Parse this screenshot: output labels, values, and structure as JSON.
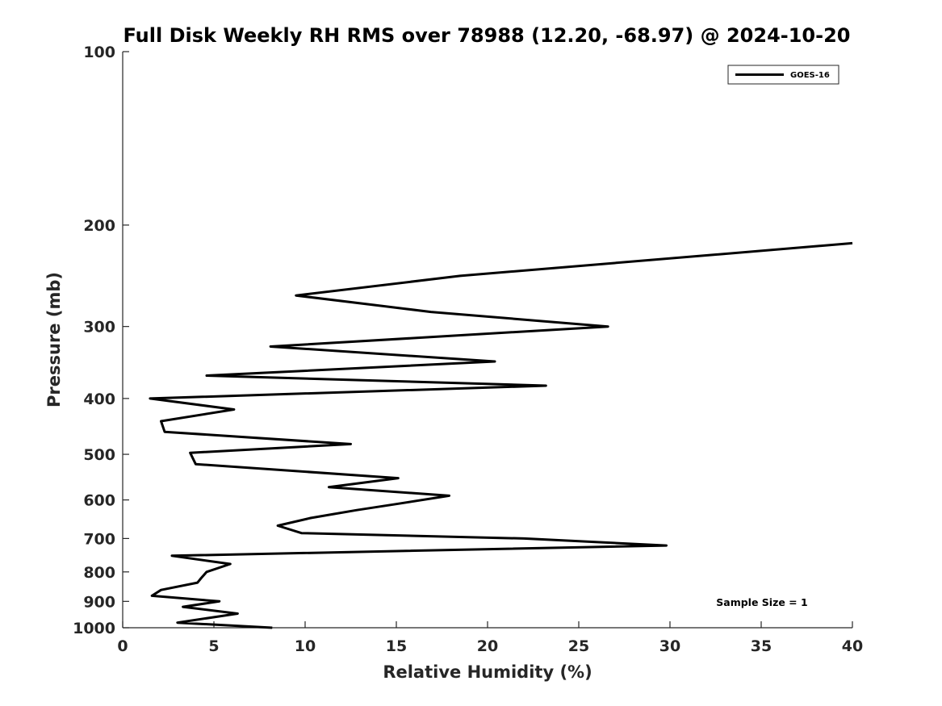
{
  "chart_data": {
    "type": "line",
    "title": "Full Disk Weekly RH RMS over 78988 (12.20, -68.97) @ 2024-10-20",
    "xlabel": "Relative Humidity (%)",
    "ylabel": "Pressure (mb)",
    "xlim": [
      0,
      40
    ],
    "ylim": [
      100,
      1000
    ],
    "yscale": "log",
    "y_reversed": true,
    "grid": false,
    "legend_position": "top-right",
    "x_ticks": [
      0,
      5,
      10,
      15,
      20,
      25,
      30,
      35,
      40
    ],
    "y_ticks": [
      100,
      200,
      300,
      400,
      500,
      600,
      700,
      800,
      900,
      1000
    ],
    "annotation": "Sample Size = 1",
    "series": [
      {
        "name": "GOES-16",
        "color": "#000000",
        "points": [
          [
            40.0,
            215
          ],
          [
            18.5,
            245
          ],
          [
            9.5,
            265
          ],
          [
            16.9,
            283
          ],
          [
            26.6,
            300
          ],
          [
            8.1,
            325
          ],
          [
            20.4,
            345
          ],
          [
            4.6,
            365
          ],
          [
            23.2,
            380
          ],
          [
            1.5,
            400
          ],
          [
            6.1,
            418
          ],
          [
            2.1,
            438
          ],
          [
            2.3,
            457
          ],
          [
            12.5,
            480
          ],
          [
            3.7,
            497
          ],
          [
            4.0,
            520
          ],
          [
            15.1,
            550
          ],
          [
            11.3,
            570
          ],
          [
            17.9,
            590
          ],
          [
            15.0,
            610
          ],
          [
            12.8,
            625
          ],
          [
            10.3,
            645
          ],
          [
            8.5,
            665
          ],
          [
            9.8,
            685
          ],
          [
            22.0,
            700
          ],
          [
            29.8,
            720
          ],
          [
            2.7,
            750
          ],
          [
            5.9,
            775
          ],
          [
            4.6,
            800
          ],
          [
            4.3,
            820
          ],
          [
            4.1,
            835
          ],
          [
            2.1,
            860
          ],
          [
            1.6,
            880
          ],
          [
            5.3,
            900
          ],
          [
            3.3,
            920
          ],
          [
            6.3,
            945
          ],
          [
            3.0,
            980
          ],
          [
            8.2,
            1000
          ]
        ]
      }
    ]
  }
}
